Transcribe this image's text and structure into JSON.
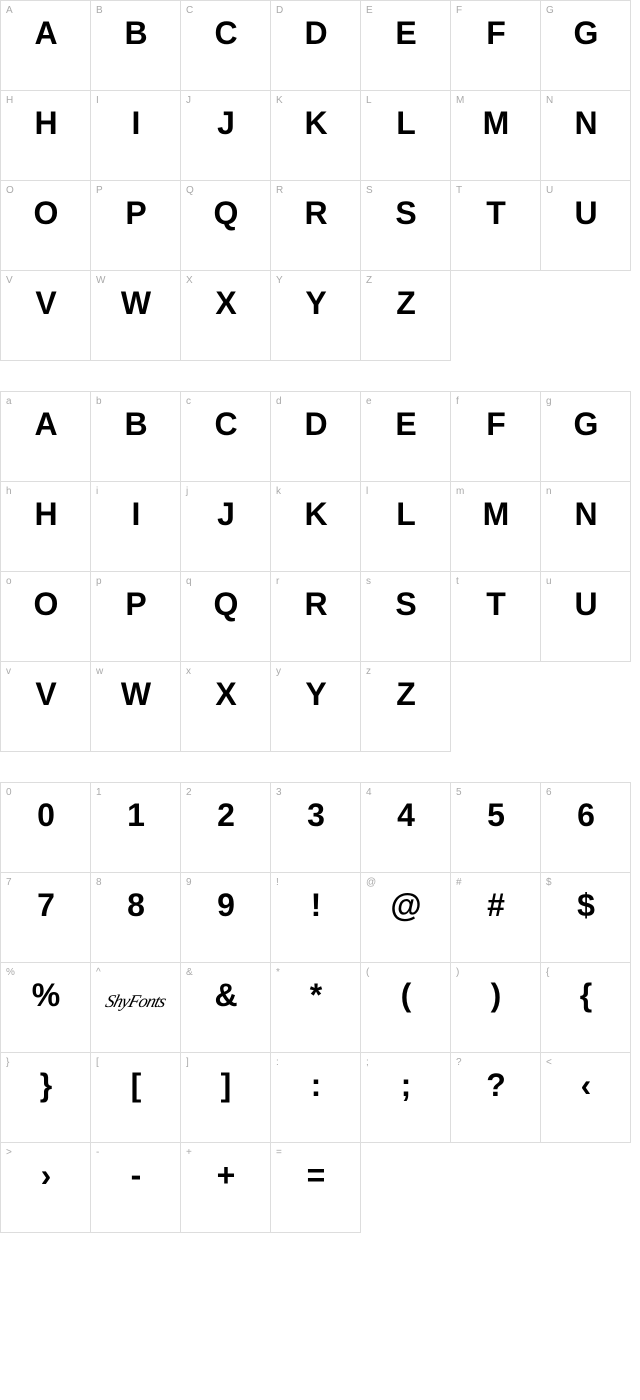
{
  "layout": {
    "cols": 7,
    "cell_size": 90,
    "border_color": "#dddddd",
    "label_color": "#aaaaaa",
    "glyph_color": "#000000",
    "background": "#ffffff",
    "label_fontsize": 10,
    "glyph_fontsize": 32,
    "glyph_weight": 900
  },
  "sections": [
    {
      "cells": [
        {
          "label": "A",
          "glyph": "A"
        },
        {
          "label": "B",
          "glyph": "B"
        },
        {
          "label": "C",
          "glyph": "C"
        },
        {
          "label": "D",
          "glyph": "D"
        },
        {
          "label": "E",
          "glyph": "E"
        },
        {
          "label": "F",
          "glyph": "F"
        },
        {
          "label": "G",
          "glyph": "G"
        },
        {
          "label": "H",
          "glyph": "H"
        },
        {
          "label": "I",
          "glyph": "I"
        },
        {
          "label": "J",
          "glyph": "J"
        },
        {
          "label": "K",
          "glyph": "K"
        },
        {
          "label": "L",
          "glyph": "L"
        },
        {
          "label": "M",
          "glyph": "M"
        },
        {
          "label": "N",
          "glyph": "N"
        },
        {
          "label": "O",
          "glyph": "O"
        },
        {
          "label": "P",
          "glyph": "P"
        },
        {
          "label": "Q",
          "glyph": "Q"
        },
        {
          "label": "R",
          "glyph": "R"
        },
        {
          "label": "S",
          "glyph": "S"
        },
        {
          "label": "T",
          "glyph": "T"
        },
        {
          "label": "U",
          "glyph": "U"
        },
        {
          "label": "V",
          "glyph": "V"
        },
        {
          "label": "W",
          "glyph": "W"
        },
        {
          "label": "X",
          "glyph": "X"
        },
        {
          "label": "Y",
          "glyph": "Y"
        },
        {
          "label": "Z",
          "glyph": "Z"
        },
        {
          "empty": true
        },
        {
          "empty": true
        }
      ]
    },
    {
      "cells": [
        {
          "label": "a",
          "glyph": "A"
        },
        {
          "label": "b",
          "glyph": "B"
        },
        {
          "label": "c",
          "glyph": "C"
        },
        {
          "label": "d",
          "glyph": "D"
        },
        {
          "label": "e",
          "glyph": "E"
        },
        {
          "label": "f",
          "glyph": "F"
        },
        {
          "label": "g",
          "glyph": "G"
        },
        {
          "label": "h",
          "glyph": "H"
        },
        {
          "label": "i",
          "glyph": "I"
        },
        {
          "label": "j",
          "glyph": "J"
        },
        {
          "label": "k",
          "glyph": "K"
        },
        {
          "label": "l",
          "glyph": "L"
        },
        {
          "label": "m",
          "glyph": "M"
        },
        {
          "label": "n",
          "glyph": "N"
        },
        {
          "label": "o",
          "glyph": "O"
        },
        {
          "label": "p",
          "glyph": "P"
        },
        {
          "label": "q",
          "glyph": "Q"
        },
        {
          "label": "r",
          "glyph": "R"
        },
        {
          "label": "s",
          "glyph": "S"
        },
        {
          "label": "t",
          "glyph": "T"
        },
        {
          "label": "u",
          "glyph": "U"
        },
        {
          "label": "v",
          "glyph": "V"
        },
        {
          "label": "w",
          "glyph": "W"
        },
        {
          "label": "x",
          "glyph": "X"
        },
        {
          "label": "y",
          "glyph": "Y"
        },
        {
          "label": "z",
          "glyph": "Z"
        },
        {
          "empty": true
        },
        {
          "empty": true
        }
      ]
    },
    {
      "cells": [
        {
          "label": "0",
          "glyph": "0"
        },
        {
          "label": "1",
          "glyph": "1"
        },
        {
          "label": "2",
          "glyph": "2"
        },
        {
          "label": "3",
          "glyph": "3"
        },
        {
          "label": "4",
          "glyph": "4"
        },
        {
          "label": "5",
          "glyph": "5"
        },
        {
          "label": "6",
          "glyph": "6"
        },
        {
          "label": "7",
          "glyph": "7"
        },
        {
          "label": "8",
          "glyph": "8"
        },
        {
          "label": "9",
          "glyph": "9"
        },
        {
          "label": "!",
          "glyph": "!"
        },
        {
          "label": "@",
          "glyph": "@"
        },
        {
          "label": "#",
          "glyph": "#"
        },
        {
          "label": "$",
          "glyph": "$"
        },
        {
          "label": "%",
          "glyph": "%"
        },
        {
          "label": "^",
          "glyph": "ShyFonts",
          "special": "skycursive"
        },
        {
          "label": "&",
          "glyph": "&"
        },
        {
          "label": "*",
          "glyph": "*"
        },
        {
          "label": "(",
          "glyph": "("
        },
        {
          "label": ")",
          "glyph": ")"
        },
        {
          "label": "{",
          "glyph": "{"
        },
        {
          "label": "}",
          "glyph": "}"
        },
        {
          "label": "[",
          "glyph": "["
        },
        {
          "label": "]",
          "glyph": "]"
        },
        {
          "label": ":",
          "glyph": ":"
        },
        {
          "label": ";",
          "glyph": ";"
        },
        {
          "label": "?",
          "glyph": "?"
        },
        {
          "label": "<",
          "glyph": "‹"
        },
        {
          "label": ">",
          "glyph": "›"
        },
        {
          "label": "-",
          "glyph": "-"
        },
        {
          "label": "+",
          "glyph": "+"
        },
        {
          "label": "=",
          "glyph": "="
        },
        {
          "empty": true
        },
        {
          "empty": true
        },
        {
          "empty": true
        }
      ]
    }
  ]
}
